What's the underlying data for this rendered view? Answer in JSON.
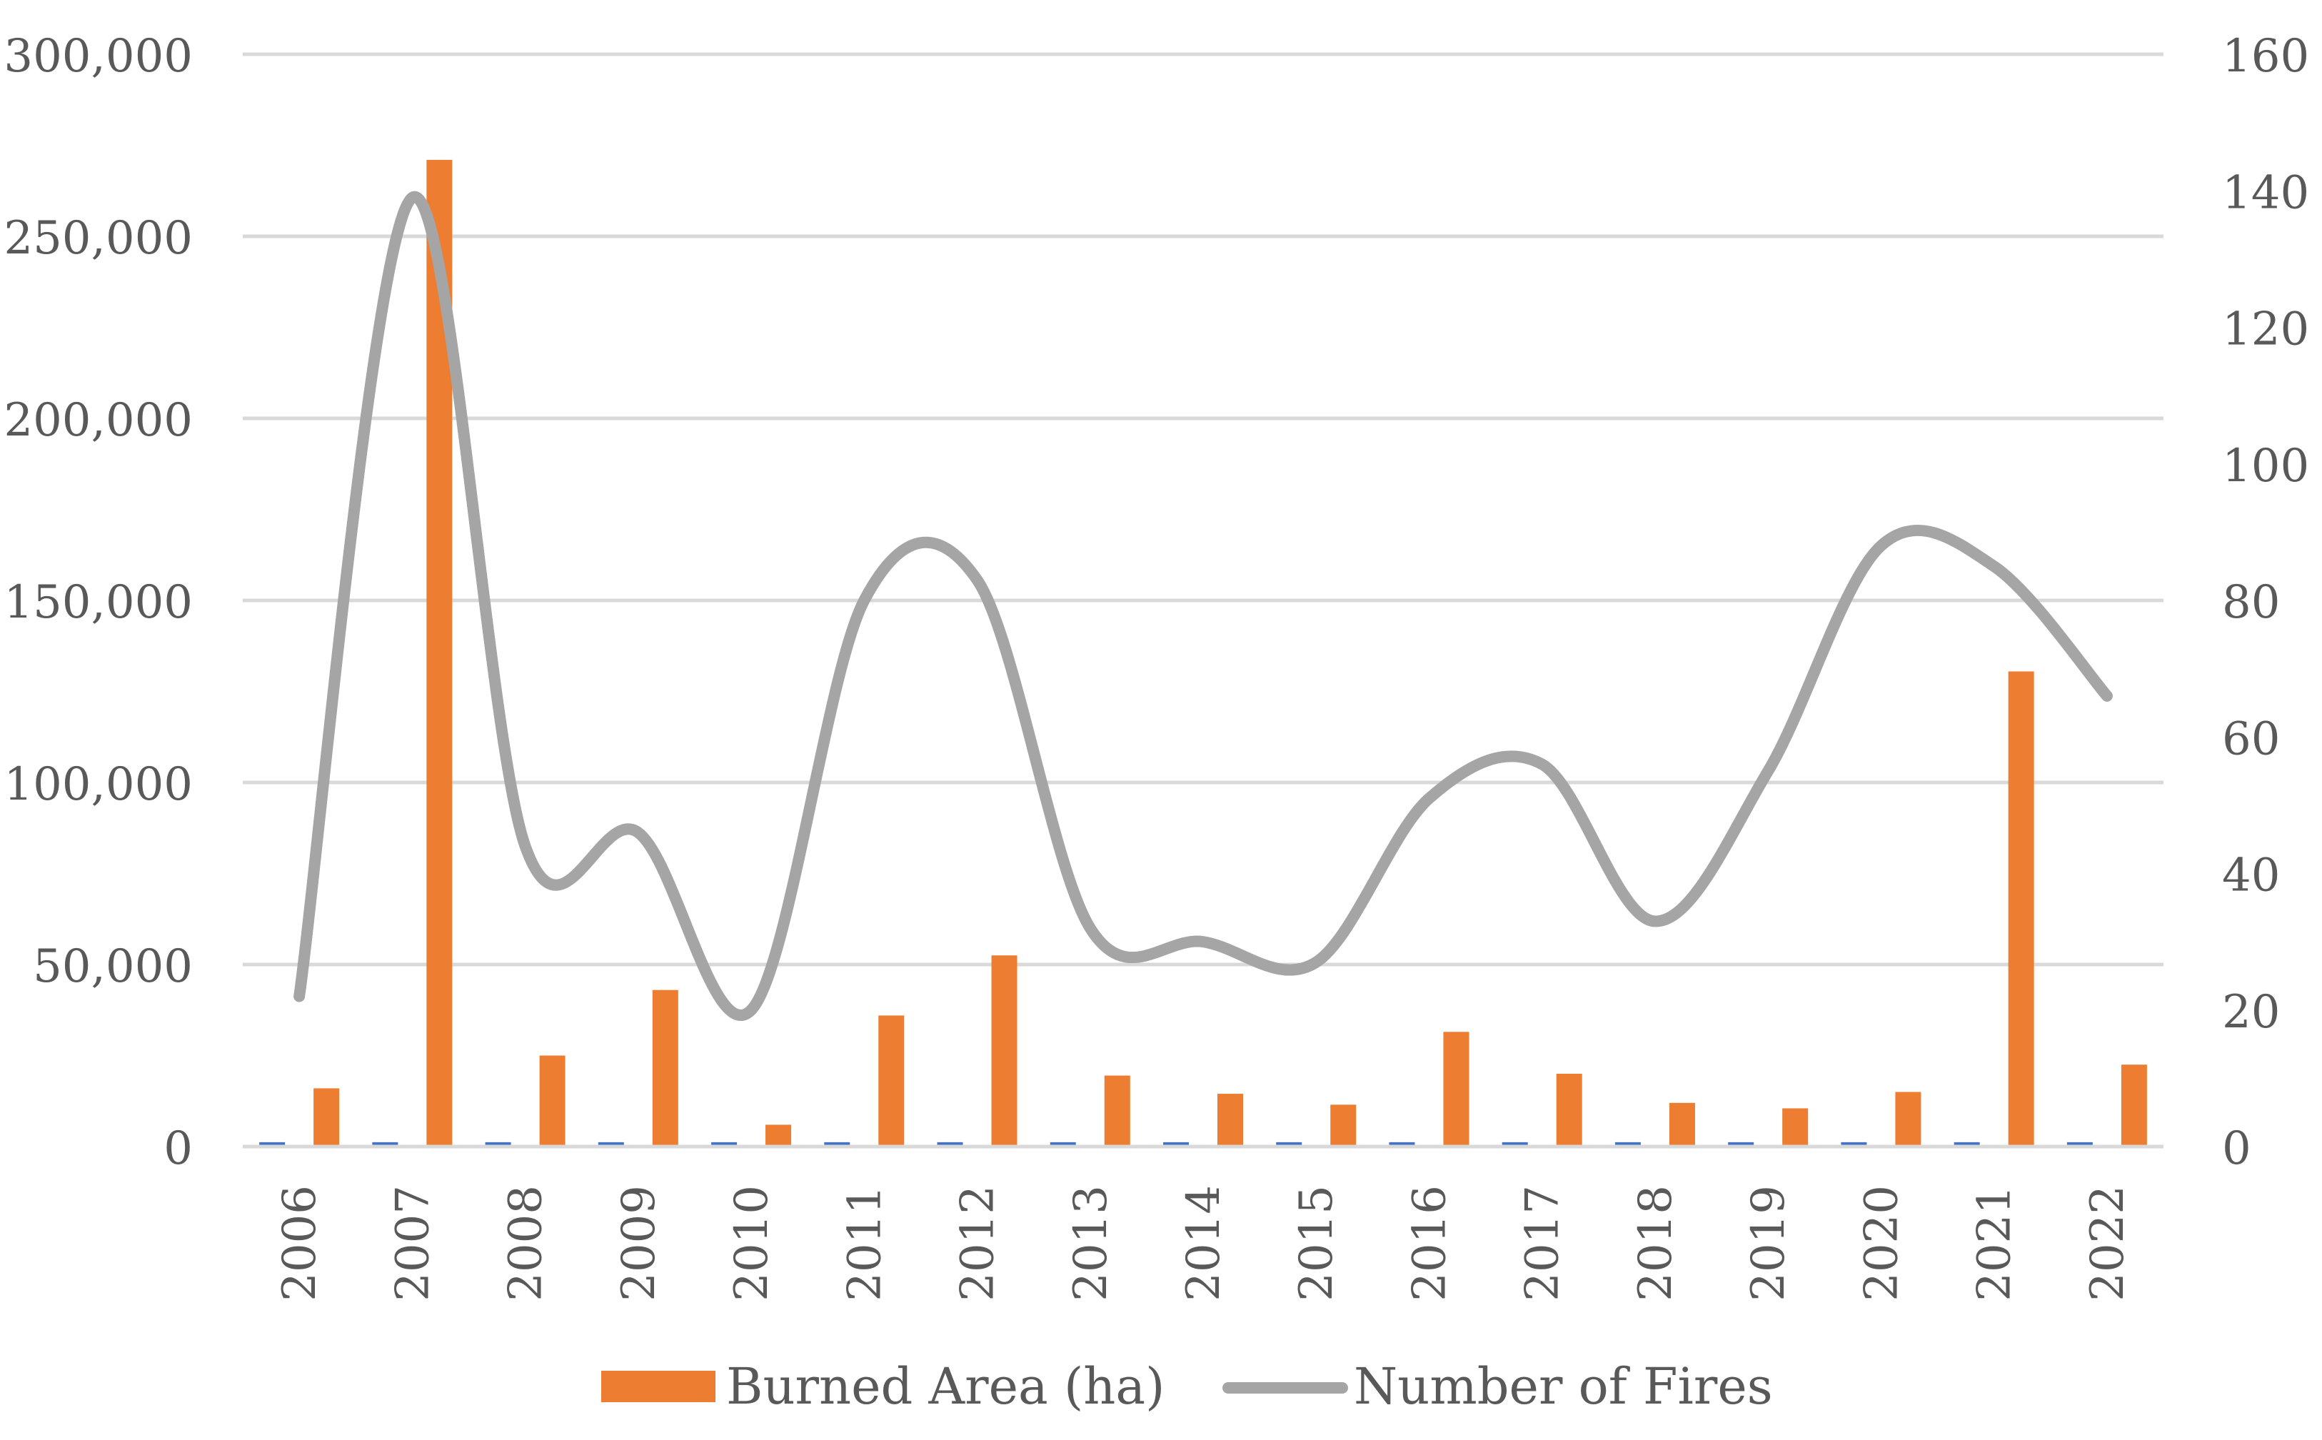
{
  "chart_data": {
    "type": "bar",
    "title": "",
    "xlabel": "",
    "ylabel": "",
    "y2label": "",
    "categories": [
      "2006",
      "2007",
      "2008",
      "2009",
      "2010",
      "2011",
      "2012",
      "2013",
      "2014",
      "2015",
      "2016",
      "2017",
      "2018",
      "2019",
      "2020",
      "2021",
      "2022"
    ],
    "ylim": [
      0,
      300000
    ],
    "y2lim": [
      0,
      160
    ],
    "y_ticks": [
      "0",
      "50,000",
      "100,000",
      "150,000",
      "200,000",
      "250,000",
      "300,000"
    ],
    "y2_ticks": [
      "0",
      "20",
      "40",
      "60",
      "80",
      "100",
      "120",
      "140",
      "160"
    ],
    "grid": true,
    "legend_position": "bottom",
    "series": [
      {
        "name": "",
        "type": "bar",
        "axis": "left",
        "color": "#4472C4",
        "values": [
          1200,
          1200,
          1200,
          1200,
          1200,
          1200,
          1200,
          1200,
          1200,
          1200,
          1200,
          1200,
          1200,
          1200,
          1200,
          1200,
          1200
        ]
      },
      {
        "name": "Burned Area (ha)",
        "type": "bar",
        "axis": "left",
        "color": "#ED7D31",
        "values": [
          16000,
          271000,
          25000,
          43000,
          6000,
          36000,
          52500,
          19500,
          14500,
          11500,
          31500,
          20000,
          12000,
          10500,
          15000,
          130500,
          22500
        ]
      },
      {
        "name": "Number of Fires",
        "type": "line",
        "axis": "right",
        "smooth": true,
        "color": "#A5A5A5",
        "values": [
          22,
          139,
          44,
          46,
          20,
          80,
          83,
          32,
          30,
          27,
          51,
          56,
          33,
          55,
          88,
          85,
          66
        ]
      }
    ]
  }
}
